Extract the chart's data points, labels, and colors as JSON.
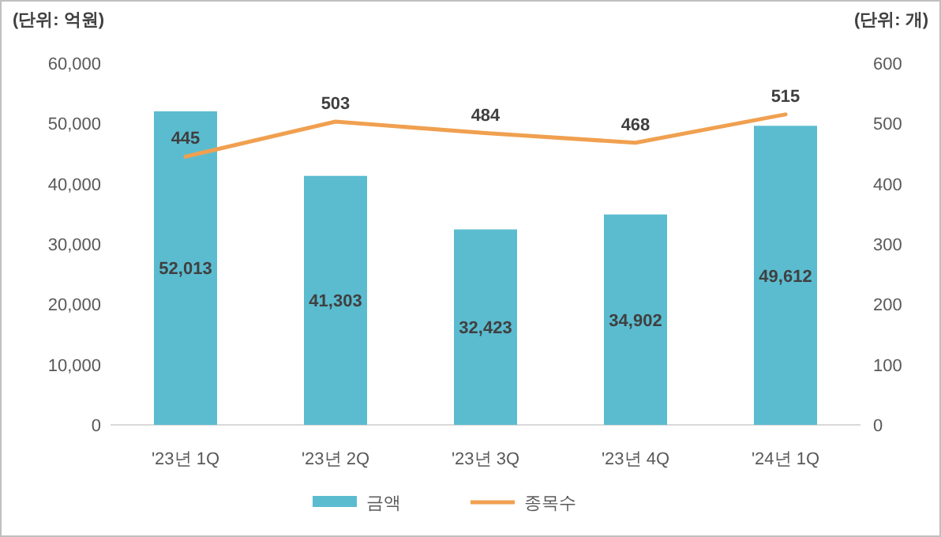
{
  "chart_data": {
    "type": "bar",
    "ylabel": "(단위: 억원)",
    "y2label": "(단위: 개)",
    "categories": [
      "'23년 1Q",
      "'23년 2Q",
      "'23년 3Q",
      "'23년 4Q",
      "'24년 1Q"
    ],
    "series": [
      {
        "name": "금액",
        "color": "#5bbcd0",
        "values": [
          52013,
          41303,
          32423,
          34902,
          49612
        ],
        "value_labels": [
          "52,013",
          "41,303",
          "32,423",
          "34,902",
          "49,612"
        ]
      },
      {
        "name": "종목수",
        "type": "line",
        "axis": "y2",
        "color": "#f0a050",
        "values": [
          445,
          503,
          484,
          468,
          515
        ],
        "value_labels": [
          "445",
          "503",
          "484",
          "468",
          "515"
        ]
      }
    ],
    "ylim": [
      0,
      60000
    ],
    "yticks": [
      0,
      {
        "value": 10000,
        "label": "10,000"
      },
      {
        "value": 20000,
        "label": "20,000"
      },
      {
        "value": 30000,
        "label": "30,000"
      },
      {
        "value": 40000,
        "label": "40,000"
      },
      {
        "value": 50000,
        "label": "50,000"
      },
      {
        "value": 60000,
        "label": "60,000"
      }
    ],
    "y2lim": [
      0,
      600
    ],
    "y2ticks": [
      0,
      100,
      200,
      300,
      400,
      500,
      600
    ],
    "legend": "bottom",
    "marker": "none",
    "line_style": "solid"
  }
}
